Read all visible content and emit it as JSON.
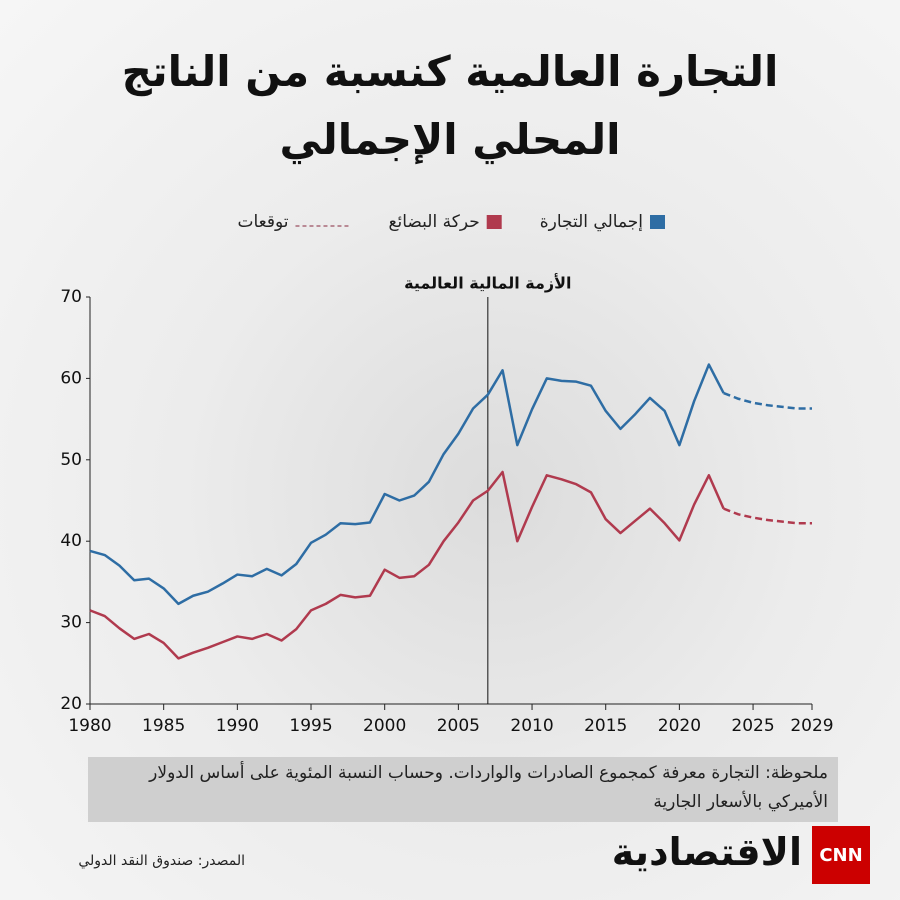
{
  "chart_data": {
    "type": "line",
    "title": "التجارة العالمية كنسبة من الناتج المحلي الإجمالي",
    "x": [
      1980,
      1981,
      1982,
      1983,
      1984,
      1985,
      1986,
      1987,
      1988,
      1989,
      1990,
      1991,
      1992,
      1993,
      1994,
      1995,
      1996,
      1997,
      1998,
      1999,
      2000,
      2001,
      2002,
      2003,
      2004,
      2005,
      2006,
      2007,
      2008,
      2009,
      2010,
      2011,
      2012,
      2013,
      2014,
      2015,
      2016,
      2017,
      2018,
      2019,
      2020,
      2021,
      2022,
      2023,
      2024,
      2025,
      2026,
      2027,
      2028,
      2029
    ],
    "series": [
      {
        "name": "إجمالي التجارة",
        "color": "#2e6da4",
        "values": [
          38.8,
          38.3,
          37.0,
          35.2,
          35.4,
          34.2,
          32.3,
          33.3,
          33.8,
          34.8,
          35.9,
          35.7,
          36.6,
          35.8,
          37.2,
          39.8,
          40.8,
          42.2,
          42.1,
          42.3,
          45.8,
          45.0,
          45.6,
          47.3,
          50.7,
          53.2,
          56.3,
          58.0,
          61.0,
          51.8,
          56.2,
          60.0,
          59.7,
          59.6,
          59.1,
          56.0,
          53.8,
          55.6,
          57.6,
          56.0,
          51.8,
          57.2,
          61.7,
          58.2,
          null,
          null,
          null,
          null,
          null,
          null
        ],
        "forecast_values": [
          null,
          null,
          null,
          null,
          null,
          null,
          null,
          null,
          null,
          null,
          null,
          null,
          null,
          null,
          null,
          null,
          null,
          null,
          null,
          null,
          null,
          null,
          null,
          null,
          null,
          null,
          null,
          null,
          null,
          null,
          null,
          null,
          null,
          null,
          null,
          null,
          null,
          null,
          null,
          null,
          null,
          null,
          null,
          58.2,
          57.5,
          57.0,
          56.7,
          56.5,
          56.3,
          56.3
        ]
      },
      {
        "name": "حركة البضائع",
        "color": "#b03a4e",
        "values": [
          31.5,
          30.8,
          29.3,
          28.0,
          28.6,
          27.5,
          25.6,
          26.3,
          26.9,
          27.6,
          28.3,
          28.0,
          28.6,
          27.8,
          29.2,
          31.5,
          32.3,
          33.4,
          33.1,
          33.3,
          36.5,
          35.5,
          35.7,
          37.1,
          40.0,
          42.3,
          45.0,
          46.2,
          48.5,
          40.0,
          44.2,
          48.1,
          47.6,
          47.0,
          46.0,
          42.7,
          41.0,
          42.5,
          44.0,
          42.2,
          40.1,
          44.5,
          48.1,
          44.0,
          null,
          null,
          null,
          null,
          null,
          null
        ],
        "forecast_values": [
          null,
          null,
          null,
          null,
          null,
          null,
          null,
          null,
          null,
          null,
          null,
          null,
          null,
          null,
          null,
          null,
          null,
          null,
          null,
          null,
          null,
          null,
          null,
          null,
          null,
          null,
          null,
          null,
          null,
          null,
          null,
          null,
          null,
          null,
          null,
          null,
          null,
          null,
          null,
          null,
          null,
          null,
          null,
          44.0,
          43.3,
          42.9,
          42.6,
          42.4,
          42.2,
          42.2
        ]
      }
    ],
    "forecast_label": "توقعات",
    "forecast_color": "#a86a78",
    "annotation": {
      "text": "الأزمة المالية العالمية",
      "x": 2007
    },
    "xlim": [
      1980,
      2029
    ],
    "xticks": [
      1980,
      1985,
      1990,
      1995,
      2000,
      2005,
      2010,
      2015,
      2020,
      2025,
      2029
    ],
    "ylim": [
      20,
      70
    ],
    "yticks": [
      20,
      30,
      40,
      50,
      60,
      70
    ],
    "grid": false
  },
  "note": "ملحوظة: التجارة معرفة كمجموع الصادرات والواردات. وحساب النسبة المئوية على أساس الدولار الأميركي بالأسعار الجارية",
  "source": "المصدر: صندوق النقد الدولي",
  "brand": {
    "name": "الاقتصادية",
    "logo": "CNN"
  }
}
